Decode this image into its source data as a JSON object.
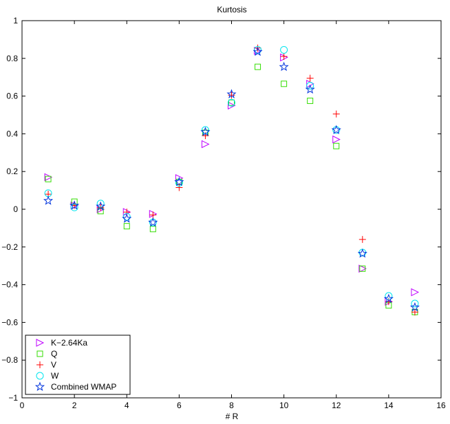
{
  "chart_data": {
    "type": "scatter",
    "title": "Kurtosis",
    "xlabel": "# R",
    "ylabel": "",
    "xlim": [
      0,
      16
    ],
    "ylim": [
      -1,
      1
    ],
    "xticks": [
      0,
      2,
      4,
      6,
      8,
      10,
      12,
      14,
      16
    ],
    "yticks": [
      -1,
      -0.8,
      -0.6,
      -0.4,
      -0.2,
      0,
      0.2,
      0.4,
      0.6,
      0.8,
      1
    ],
    "grid": false,
    "legend_position": "bottom-left",
    "series": [
      {
        "name": "K−2.64Ka",
        "marker": "triangle-right",
        "color": "#bf00ff",
        "x": [
          1,
          2,
          3,
          4,
          5,
          6,
          7,
          8,
          9,
          10,
          11,
          12,
          13,
          14,
          15
        ],
        "y": [
          0.17,
          0.02,
          0.0,
          -0.015,
          -0.025,
          0.165,
          0.345,
          0.55,
          0.84,
          0.805,
          0.665,
          0.37,
          -0.315,
          -0.49,
          -0.44
        ]
      },
      {
        "name": "Q",
        "marker": "square",
        "color": "#33dd00",
        "x": [
          1,
          2,
          3,
          4,
          5,
          6,
          7,
          8,
          9,
          10,
          11,
          12,
          13,
          14,
          15
        ],
        "y": [
          0.16,
          0.04,
          -0.01,
          -0.09,
          -0.105,
          0.145,
          0.405,
          0.565,
          0.755,
          0.665,
          0.575,
          0.335,
          -0.315,
          -0.51,
          -0.545
        ]
      },
      {
        "name": "V",
        "marker": "plus",
        "color": "#ff0000",
        "x": [
          1,
          2,
          3,
          4,
          5,
          6,
          7,
          8,
          9,
          10,
          11,
          12,
          13,
          14,
          15
        ],
        "y": [
          0.08,
          0.02,
          0.01,
          -0.015,
          -0.03,
          0.115,
          0.39,
          0.605,
          0.855,
          0.81,
          0.695,
          0.505,
          -0.16,
          -0.49,
          -0.545
        ]
      },
      {
        "name": "W",
        "marker": "circle",
        "color": "#00e5ee",
        "x": [
          1,
          2,
          3,
          4,
          5,
          6,
          7,
          8,
          9,
          10,
          11,
          12,
          13,
          14,
          15
        ],
        "y": [
          0.085,
          0.01,
          0.03,
          -0.04,
          -0.07,
          0.14,
          0.42,
          0.565,
          0.845,
          0.845,
          0.655,
          0.42,
          -0.23,
          -0.46,
          -0.5
        ]
      },
      {
        "name": "Combined WMAP",
        "marker": "pentagram",
        "color": "#0033dd",
        "x": [
          1,
          2,
          3,
          4,
          5,
          6,
          7,
          8,
          9,
          10,
          11,
          12,
          13,
          14,
          15
        ],
        "y": [
          0.045,
          0.02,
          0.015,
          -0.05,
          -0.07,
          0.145,
          0.41,
          0.61,
          0.835,
          0.755,
          0.635,
          0.42,
          -0.235,
          -0.475,
          -0.52
        ]
      }
    ]
  }
}
